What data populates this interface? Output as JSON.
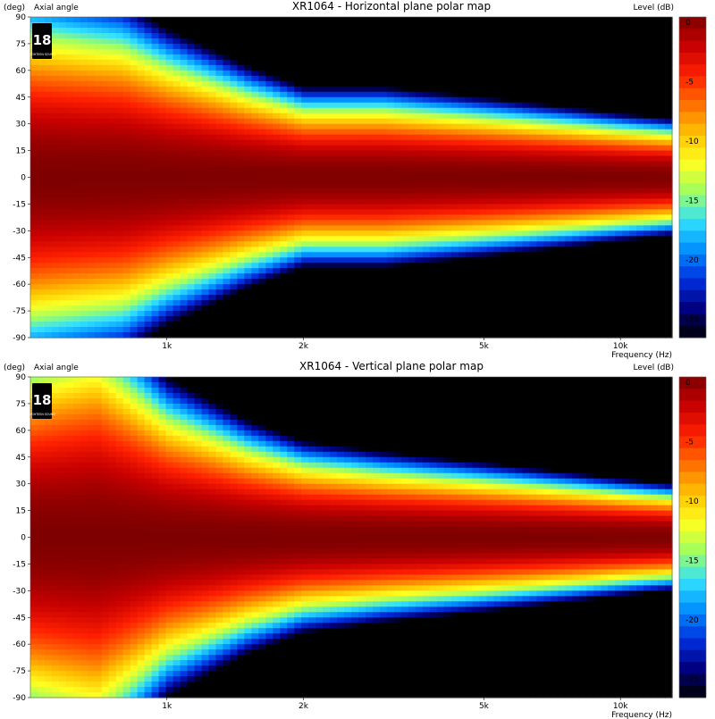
{
  "chart_data": [
    {
      "type": "heatmap",
      "title": "XR1064 - Horizontal plane polar map",
      "y_unit_label": "(deg)",
      "ylabel": "Axial angle",
      "xlabel": "Frequency (Hz)",
      "colorbar_label": "Level (dB)",
      "x_scale": "log",
      "xlim": [
        500,
        13000
      ],
      "ylim": [
        -90,
        90
      ],
      "x_ticks": [
        "1k",
        "2k",
        "5k",
        "10k"
      ],
      "x_tick_values": [
        1000,
        2000,
        5000,
        10000
      ],
      "y_ticks": [
        "90",
        "75",
        "60",
        "45",
        "30",
        "15",
        "0",
        "-15",
        "-30",
        "-45",
        "-60",
        "-75",
        "-90"
      ],
      "y_tick_values": [
        90,
        75,
        60,
        45,
        30,
        15,
        0,
        -15,
        -30,
        -45,
        -60,
        -75,
        -90
      ],
      "colorbar_ticks": [
        "0",
        "-5",
        "-10",
        "-15",
        "-20",
        "-25"
      ],
      "colorbar_tick_values": [
        0,
        -5,
        -10,
        -15,
        -20,
        -25
      ],
      "level_range": [
        -27,
        0
      ],
      "colormap": [
        "#7f0000",
        "#c80000",
        "#ff2000",
        "#ff7000",
        "#ffc000",
        "#ffff20",
        "#a0ff60",
        "#30e0ff",
        "#0090ff",
        "#0030e0",
        "#000080",
        "#000000"
      ],
      "minus3dB_halfangle_deg": {
        "freq_hz": [
          500,
          800,
          1000,
          1500,
          2000,
          3000,
          5000,
          8000,
          10000,
          13000
        ],
        "angle": [
          36,
          33,
          28,
          21,
          17,
          17,
          15,
          13,
          12,
          11
        ]
      }
    },
    {
      "type": "heatmap",
      "title": "XR1064 - Vertical plane polar map",
      "y_unit_label": "(deg)",
      "ylabel": "Axial angle",
      "xlabel": "Frequency (Hz)",
      "colorbar_label": "Level (dB)",
      "x_scale": "log",
      "xlim": [
        500,
        13000
      ],
      "ylim": [
        -90,
        90
      ],
      "x_ticks": [
        "1k",
        "2k",
        "5k",
        "10k"
      ],
      "x_tick_values": [
        1000,
        2000,
        5000,
        10000
      ],
      "y_ticks": [
        "90",
        "75",
        "60",
        "45",
        "30",
        "15",
        "0",
        "-15",
        "-30",
        "-45",
        "-60",
        "-75",
        "-90"
      ],
      "y_tick_values": [
        90,
        75,
        60,
        45,
        30,
        15,
        0,
        -15,
        -30,
        -45,
        -60,
        -75,
        -90
      ],
      "colorbar_ticks": [
        "0",
        "-5",
        "-10",
        "-15",
        "-20",
        "-25"
      ],
      "colorbar_tick_values": [
        0,
        -5,
        -10,
        -15,
        -20,
        -25
      ],
      "level_range": [
        -27,
        0
      ],
      "colormap": [
        "#7f0000",
        "#c80000",
        "#ff2000",
        "#ff7000",
        "#ffc000",
        "#ffff20",
        "#a0ff60",
        "#30e0ff",
        "#0090ff",
        "#0030e0",
        "#000080",
        "#000000"
      ],
      "minus3dB_halfangle_deg": {
        "freq_hz": [
          500,
          700,
          1000,
          1500,
          2000,
          3000,
          5000,
          8000,
          10000,
          13000
        ],
        "angle": [
          40,
          44,
          30,
          22,
          18,
          16,
          14,
          12,
          11,
          10
        ]
      }
    }
  ],
  "logo": {
    "number": "18",
    "text": "EIGHTEEN SOUND"
  }
}
